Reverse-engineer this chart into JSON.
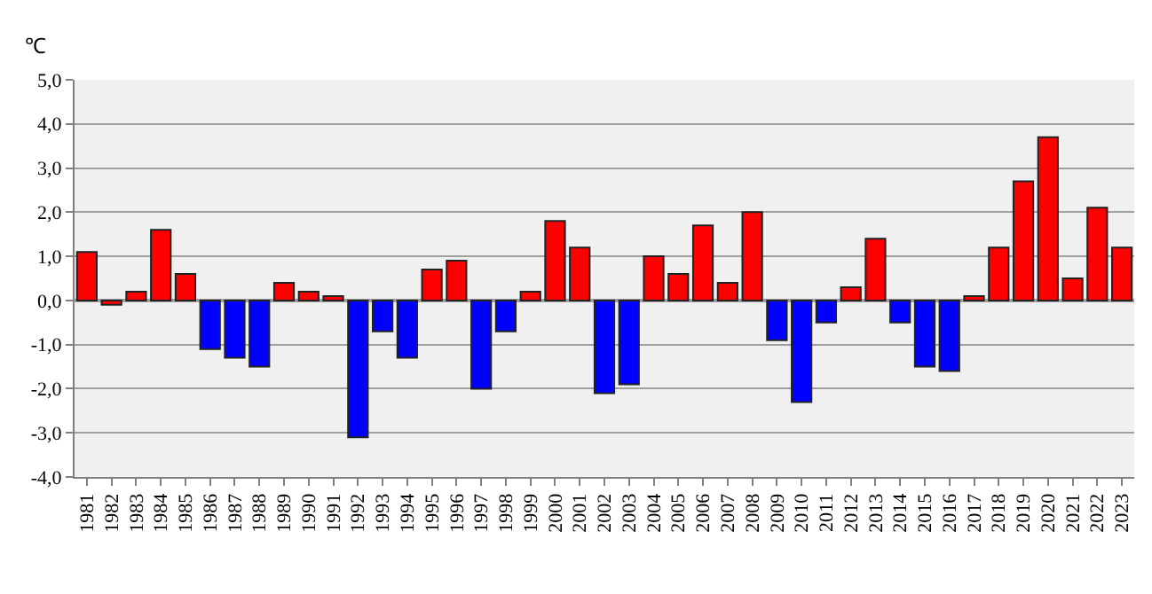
{
  "chart_data": {
    "type": "bar",
    "ylabel": "℃",
    "categories": [
      "1981",
      "1982",
      "1983",
      "1984",
      "1985",
      "1986",
      "1987",
      "1988",
      "1989",
      "1990",
      "1991",
      "1992",
      "1993",
      "1994",
      "1995",
      "1996",
      "1997",
      "1998",
      "1999",
      "2000",
      "2001",
      "2002",
      "2003",
      "2004",
      "2005",
      "2006",
      "2007",
      "2008",
      "2009",
      "2010",
      "2011",
      "2012",
      "2013",
      "2014",
      "2015",
      "2016",
      "2017",
      "2018",
      "2019",
      "2020",
      "2021",
      "2022",
      "2023"
    ],
    "values": [
      1.1,
      -0.1,
      0.2,
      1.6,
      0.6,
      -1.1,
      -1.3,
      -1.5,
      0.4,
      0.2,
      0.1,
      -3.1,
      -0.7,
      -1.3,
      0.7,
      0.9,
      -2.0,
      -0.7,
      0.2,
      1.8,
      1.2,
      -2.1,
      -1.9,
      1.0,
      0.6,
      1.7,
      0.4,
      2.0,
      -0.9,
      -2.3,
      -0.5,
      0.3,
      1.4,
      -0.5,
      -1.5,
      -1.6,
      0.1,
      1.2,
      2.7,
      3.7,
      0.5,
      2.1,
      1.2
    ],
    "colors": [
      "#ff0000",
      "#ff0000",
      "#ff0000",
      "#ff0000",
      "#ff0000",
      "#0000ff",
      "#0000ff",
      "#0000ff",
      "#ff0000",
      "#ff0000",
      "#ff0000",
      "#0000ff",
      "#0000ff",
      "#0000ff",
      "#ff0000",
      "#ff0000",
      "#0000ff",
      "#0000ff",
      "#ff0000",
      "#ff0000",
      "#ff0000",
      "#0000ff",
      "#0000ff",
      "#ff0000",
      "#ff0000",
      "#ff0000",
      "#ff0000",
      "#ff0000",
      "#0000ff",
      "#0000ff",
      "#0000ff",
      "#ff0000",
      "#ff0000",
      "#0000ff",
      "#0000ff",
      "#0000ff",
      "#ff0000",
      "#ff0000",
      "#ff0000",
      "#ff0000",
      "#ff0000",
      "#ff0000",
      "#ff0000"
    ],
    "ylim": [
      -4,
      5
    ],
    "yticks": [
      {
        "value": -4,
        "label": "-4,0"
      },
      {
        "value": -3,
        "label": "-3,0"
      },
      {
        "value": -2,
        "label": "-2,0"
      },
      {
        "value": -1,
        "label": "-1,0"
      },
      {
        "value": 0,
        "label": "0,0"
      },
      {
        "value": 1,
        "label": "1,0"
      },
      {
        "value": 2,
        "label": "2,0"
      },
      {
        "value": 3,
        "label": "3,0"
      },
      {
        "value": 4,
        "label": "4,0"
      },
      {
        "value": 5,
        "label": "5,0"
      }
    ],
    "grid": "y"
  }
}
